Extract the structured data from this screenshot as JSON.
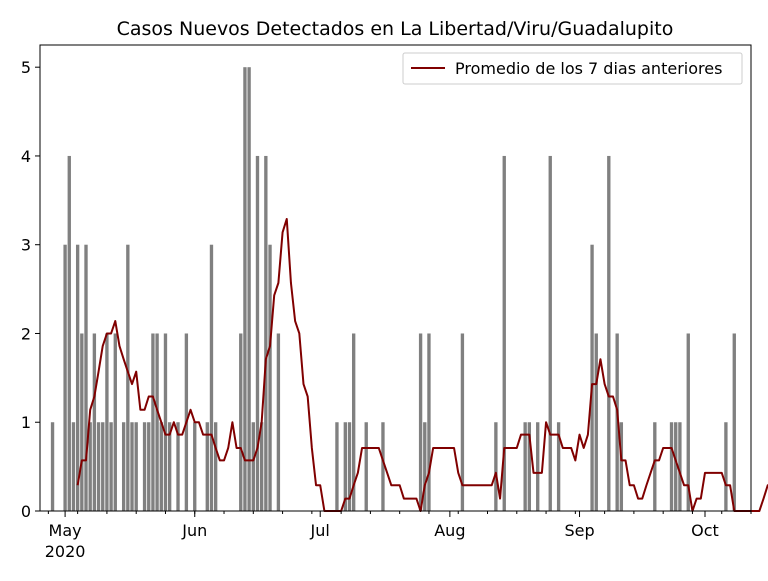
{
  "chart_data": {
    "type": "bar",
    "title": "Casos Nuevos Detectados en La Libertad/Viru/Guadalupito",
    "xlabel": "",
    "ylabel": "",
    "x_start": "2020-04-25",
    "x_end": "2020-10-12",
    "ylim": [
      0,
      5.25
    ],
    "y_ticks": [
      0,
      1,
      2,
      3,
      4,
      5
    ],
    "x_ticks": [
      {
        "date": "2020-05-01",
        "label": "May",
        "sublabel": "2020"
      },
      {
        "date": "2020-06-01",
        "label": "Jun",
        "sublabel": ""
      },
      {
        "date": "2020-07-01",
        "label": "Jul",
        "sublabel": ""
      },
      {
        "date": "2020-08-01",
        "label": "Aug",
        "sublabel": ""
      },
      {
        "date": "2020-09-01",
        "label": "Sep",
        "sublabel": ""
      },
      {
        "date": "2020-10-01",
        "label": "Oct",
        "sublabel": ""
      }
    ],
    "grid": false,
    "legend": {
      "position": "top-right",
      "entries": [
        "Promedio de los 7 dias anteriores"
      ]
    },
    "series": [
      {
        "kind": "bar",
        "color": "#808080",
        "start_date": "2020-04-28",
        "values": [
          1,
          0,
          0,
          3,
          4,
          1,
          3,
          2,
          3,
          1,
          2,
          1,
          1,
          2,
          1,
          2,
          0,
          1,
          3,
          1,
          1,
          0,
          1,
          1,
          2,
          2,
          1,
          2,
          1,
          0,
          1,
          0,
          2,
          0,
          1,
          0,
          0,
          1,
          3,
          1,
          0,
          0,
          0,
          0,
          0,
          2,
          5,
          5,
          1,
          4,
          1,
          4,
          3,
          0,
          2,
          0,
          0,
          0,
          0,
          0,
          0,
          0,
          0,
          0,
          0,
          0,
          0,
          0,
          1,
          0,
          1,
          1,
          2,
          0,
          0,
          1,
          0,
          0,
          0,
          1,
          0,
          0,
          0,
          0,
          0,
          0,
          0,
          0,
          2,
          1,
          2,
          0,
          0,
          0,
          0,
          0,
          0,
          0,
          2,
          0,
          0,
          0,
          0,
          0,
          0,
          0,
          1,
          0,
          4,
          0,
          0,
          0,
          0,
          1,
          1,
          0,
          1,
          0,
          0,
          4,
          0,
          1,
          0,
          0,
          0,
          0,
          0,
          0,
          0,
          3,
          2,
          0,
          0,
          4,
          0,
          2,
          1,
          0,
          0,
          0,
          0,
          0,
          0,
          0,
          1,
          0,
          0,
          0,
          1,
          1,
          1,
          0,
          2,
          0,
          0,
          0,
          0,
          0,
          0,
          0,
          0,
          1,
          0,
          2,
          0,
          0,
          0,
          0,
          0,
          0,
          0,
          0,
          0,
          0,
          0,
          0,
          0,
          1,
          1,
          0,
          0,
          0,
          0,
          0,
          0,
          1
        ]
      },
      {
        "kind": "line",
        "name": "Promedio de los 7 dias anteriores",
        "color": "#800000",
        "start_date": "2020-05-04",
        "values": [
          0.29,
          0.57,
          0.57,
          1.14,
          1.29,
          1.57,
          1.86,
          2.0,
          2.0,
          2.14,
          1.86,
          1.71,
          1.57,
          1.43,
          1.57,
          1.14,
          1.14,
          1.29,
          1.29,
          1.14,
          1.0,
          0.86,
          0.86,
          1.0,
          0.86,
          0.86,
          1.0,
          1.14,
          1.0,
          1.0,
          0.86,
          0.86,
          0.86,
          0.71,
          0.57,
          0.57,
          0.71,
          1.0,
          0.71,
          0.71,
          0.57,
          0.57,
          0.57,
          0.71,
          1.0,
          1.71,
          1.86,
          2.43,
          2.57,
          3.14,
          3.29,
          2.57,
          2.14,
          2.0,
          1.43,
          1.29,
          0.71,
          0.29,
          0.29,
          0,
          0,
          0,
          0,
          0,
          0.14,
          0.14,
          0.29,
          0.43,
          0.71,
          0.71,
          0.71,
          0.71,
          0.71,
          0.57,
          0.43,
          0.29,
          0.29,
          0.29,
          0.14,
          0.14,
          0.14,
          0.14,
          0,
          0.29,
          0.43,
          0.71,
          0.71,
          0.71,
          0.71,
          0.71,
          0.71,
          0.43,
          0.29,
          0.29,
          0.29,
          0.29,
          0.29,
          0.29,
          0.29,
          0.29,
          0.43,
          0.14,
          0.71,
          0.71,
          0.71,
          0.71,
          0.86,
          0.86,
          0.86,
          0.43,
          0.43,
          0.43,
          1.0,
          0.86,
          0.86,
          0.86,
          0.71,
          0.71,
          0.71,
          0.57,
          0.86,
          0.71,
          0.86,
          1.43,
          1.43,
          1.71,
          1.43,
          1.29,
          1.29,
          1.14,
          0.57,
          0.57,
          0.29,
          0.29,
          0.14,
          0.14,
          0.29,
          0.43,
          0.57,
          0.57,
          0.71,
          0.71,
          0.71,
          0.57,
          0.43,
          0.29,
          0.29,
          0,
          0.14,
          0.14,
          0.43,
          0.43,
          0.43,
          0.43,
          0.43,
          0.29,
          0.29,
          0,
          0,
          0,
          0,
          0,
          0,
          0,
          0.14,
          0.29,
          0.29,
          0.29,
          0.29,
          0.29,
          0.43
        ]
      }
    ]
  }
}
